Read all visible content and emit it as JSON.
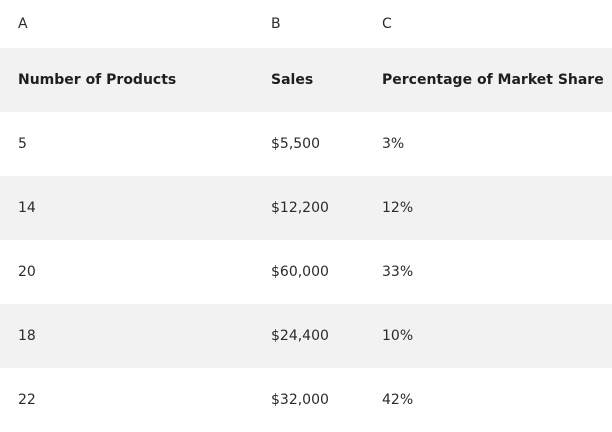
{
  "column_letters": [
    "A",
    "B",
    "C"
  ],
  "headers": [
    "Number of Products",
    "Sales",
    "Percentage of Market Share"
  ],
  "rows": [
    [
      "5",
      "$5,500",
      "3%"
    ],
    [
      "14",
      "$12,200",
      "12%"
    ],
    [
      "20",
      "$60,000",
      "33%"
    ],
    [
      "18",
      "$24,400",
      "10%"
    ],
    [
      "22",
      "$32,000",
      "42%"
    ]
  ]
}
